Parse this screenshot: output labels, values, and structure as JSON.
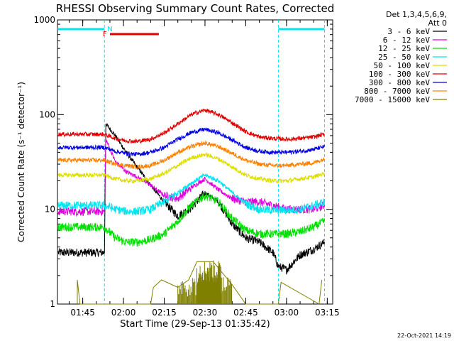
{
  "chart_data": {
    "type": "line",
    "title": "RHESSI Observing Summary Count Rates, Corrected",
    "xlabel": "Start Time (29-Sep-13 01:35:42)",
    "ylabel": "Corrected Count Rate (s⁻¹ detector⁻¹)",
    "xscale": "time",
    "yscale": "log",
    "xlim": [
      "01:35:42",
      "03:17:00"
    ],
    "ylim": [
      1,
      1000
    ],
    "x_ticks": [
      "01:45",
      "02:00",
      "02:15",
      "02:30",
      "02:45",
      "03:00",
      "03:15"
    ],
    "y_ticks": [
      "1",
      "10",
      "100",
      "1000"
    ],
    "legend_header": [
      "Det 1,3,4,5,6,9,",
      "Att 0"
    ],
    "legend_position": "right",
    "timestamp": "22-Oct-2021 14:19",
    "flag_labels": [
      "N",
      "F"
    ],
    "flags": [
      {
        "label": "",
        "color": "#00e5ee",
        "start": "01:35:42",
        "end": "01:53:00"
      },
      {
        "label": "N",
        "color": "#00e5ee",
        "start": "01:53:00",
        "end": "01:53:00"
      },
      {
        "label": "F",
        "color": "#e00000",
        "start": "01:55:00",
        "end": "02:13:00"
      },
      {
        "label": "",
        "color": "#00e5ee",
        "start": "02:57:00",
        "end": "03:14:00"
      }
    ],
    "night_boundaries": [
      "01:53:00",
      "02:57:00",
      "03:14:00"
    ],
    "series": [
      {
        "name": "3 - 6 keV",
        "color": "#000000",
        "x": [
          "01:36",
          "01:53",
          "01:53.5",
          "01:57",
          "02:01",
          "02:05",
          "02:10",
          "02:15",
          "02:20",
          "02:25",
          "02:30",
          "02:35",
          "02:40",
          "02:45",
          "02:50",
          "02:55",
          "02:57",
          "03:00",
          "03:05",
          "03:10",
          "03:14"
        ],
        "y": [
          3.5,
          3.5,
          80,
          60,
          40,
          28,
          18,
          12,
          8.5,
          10.5,
          15,
          12,
          7,
          5,
          4.5,
          3.5,
          2.5,
          2.3,
          3.3,
          3.8,
          4.5
        ]
      },
      {
        "name": "6 - 12 keV",
        "color": "#e000e0",
        "x": [
          "01:36",
          "01:53",
          "01:53.5",
          "01:57",
          "02:01",
          "02:05",
          "02:10",
          "02:15",
          "02:20",
          "02:25",
          "02:30",
          "02:35",
          "02:40",
          "02:45",
          "02:50",
          "02:55",
          "03:00",
          "03:05",
          "03:10",
          "03:14"
        ],
        "y": [
          9.5,
          9.5,
          55,
          32,
          25,
          22,
          18,
          14,
          13,
          17,
          21,
          16,
          13,
          12,
          12,
          11,
          10,
          10,
          10,
          11
        ]
      },
      {
        "name": "12 - 25 keV",
        "color": "#00e000",
        "x": [
          "01:36",
          "01:53",
          "01:57",
          "02:01",
          "02:05",
          "02:10",
          "02:15",
          "02:20",
          "02:25",
          "02:30",
          "02:35",
          "02:40",
          "02:45",
          "02:50",
          "02:55",
          "03:00",
          "03:05",
          "03:10",
          "03:14"
        ],
        "y": [
          6.5,
          6.5,
          5,
          4.5,
          4.5,
          4.8,
          5.5,
          7.5,
          11,
          14,
          12,
          8,
          6,
          5.5,
          5.5,
          5.5,
          5.8,
          6.5,
          7.5
        ]
      },
      {
        "name": "25 - 50 keV",
        "color": "#00e5ee",
        "x": [
          "01:36",
          "01:53",
          "01:57",
          "02:01",
          "02:05",
          "02:10",
          "02:15",
          "02:20",
          "02:25",
          "02:30",
          "02:35",
          "02:40",
          "02:45",
          "02:50",
          "02:55",
          "03:00",
          "03:05",
          "03:10",
          "03:14"
        ],
        "y": [
          11,
          11,
          10,
          9.5,
          9.5,
          10,
          12,
          15,
          19,
          23,
          20,
          15,
          11.5,
          10,
          9.8,
          9.8,
          10,
          11,
          12
        ]
      },
      {
        "name": "50 - 100 keV",
        "color": "#dede00",
        "x": [
          "01:36",
          "01:53",
          "01:57",
          "02:01",
          "02:05",
          "02:10",
          "02:15",
          "02:20",
          "02:25",
          "02:30",
          "02:35",
          "02:40",
          "02:45",
          "02:50",
          "02:55",
          "03:00",
          "03:05",
          "03:10",
          "03:14"
        ],
        "y": [
          23,
          23,
          21,
          20,
          20,
          21,
          24,
          29,
          35,
          38,
          34,
          28,
          23,
          21,
          20,
          20,
          21,
          22,
          24
        ]
      },
      {
        "name": "100 - 300 keV",
        "color": "#e00000",
        "x": [
          "01:36",
          "01:53",
          "01:57",
          "02:01",
          "02:05",
          "02:10",
          "02:15",
          "02:20",
          "02:25",
          "02:30",
          "02:35",
          "02:40",
          "02:45",
          "02:50",
          "02:55",
          "03:00",
          "03:05",
          "03:10",
          "03:14"
        ],
        "y": [
          62,
          62,
          56,
          53,
          52,
          55,
          64,
          80,
          100,
          112,
          100,
          82,
          66,
          58,
          56,
          55,
          56,
          58,
          62
        ]
      },
      {
        "name": "300 - 800 keV",
        "color": "#0000e0",
        "x": [
          "01:36",
          "01:53",
          "01:57",
          "02:01",
          "02:05",
          "02:10",
          "02:15",
          "02:20",
          "02:25",
          "02:30",
          "02:35",
          "02:40",
          "02:45",
          "02:50",
          "02:55",
          "03:00",
          "03:05",
          "03:10",
          "03:14"
        ],
        "y": [
          45,
          45,
          41,
          39,
          38,
          40,
          45,
          55,
          65,
          70,
          64,
          54,
          45,
          41,
          40,
          40,
          41,
          43,
          46
        ]
      },
      {
        "name": "800 - 7000 keV",
        "color": "#ff8000",
        "x": [
          "01:36",
          "01:53",
          "01:57",
          "02:01",
          "02:05",
          "02:10",
          "02:15",
          "02:20",
          "02:25",
          "02:30",
          "02:35",
          "02:40",
          "02:45",
          "02:50",
          "02:55",
          "03:00",
          "03:05",
          "03:10",
          "03:14"
        ],
        "y": [
          33,
          33,
          30,
          29,
          28,
          29,
          33,
          40,
          46,
          50,
          46,
          39,
          33,
          30,
          29,
          29,
          30,
          31,
          34
        ]
      },
      {
        "name": "7000 - 15000 keV",
        "color": "#808000",
        "x": [
          "01:43",
          "01:43",
          "01:44",
          "02:10",
          "02:11",
          "02:14",
          "02:20",
          "02:24",
          "02:27",
          "02:30",
          "02:33",
          "02:36",
          "02:40",
          "02:45",
          "02:57",
          "02:58",
          "03:12",
          "03:13"
        ],
        "y": [
          1,
          1.8,
          1,
          1,
          1.5,
          1.8,
          1.5,
          1.8,
          2.8,
          2.8,
          2.8,
          2.2,
          1.6,
          1,
          1,
          1.7,
          1,
          1.8
        ]
      }
    ]
  }
}
